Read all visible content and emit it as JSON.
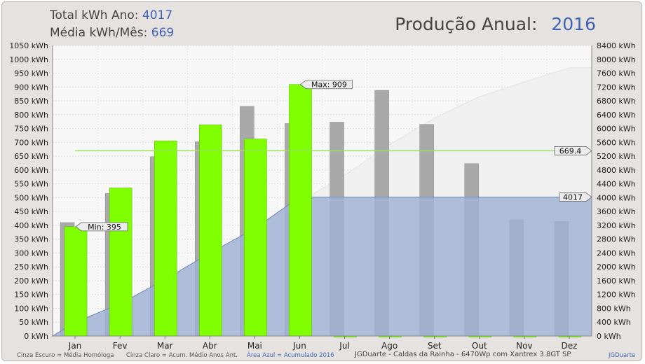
{
  "header": {
    "total_label": "Total kWh Ano:",
    "total_value": "4017",
    "avg_label": "Média kWh/Mês:",
    "avg_value": "669",
    "title_label": "Produção Anual:",
    "title_year": "2016"
  },
  "footer": {
    "legend1": "Cinza Escuro = Média Homóloga",
    "legend2": "Cinza Claro = Acum. Médio Anos Ant.",
    "legend3": "Área Azul = Acumulado 2016",
    "system": "JGDuarte  -  Caldas da Rainha  -  6470Wp com Xantrex 3.8GT SP",
    "brand": "JGDuarte"
  },
  "chart_data": {
    "type": "bar",
    "categories": [
      "Jan",
      "Fev",
      "Mar",
      "Abr",
      "Mai",
      "Jun",
      "Jul",
      "Ago",
      "Set",
      "Out",
      "Nov",
      "Dez"
    ],
    "y_left": {
      "ylim": [
        0,
        1050
      ],
      "step": 50,
      "unit": "kWh"
    },
    "y_right": {
      "ylim": [
        0,
        8400
      ],
      "step": 400,
      "unit": "kWh"
    },
    "grid": true,
    "series": [
      {
        "name": "Média Homóloga",
        "role": "dark-gray bars",
        "color": "#a9a9a9",
        "values": [
          410,
          515,
          648,
          702,
          830,
          768,
          773,
          888,
          765,
          623,
          421,
          414
        ]
      },
      {
        "name": "2016",
        "role": "green bars",
        "color": "#7fff00",
        "values": [
          395,
          535,
          705,
          763,
          712,
          909,
          0,
          0,
          0,
          0,
          0,
          0
        ]
      },
      {
        "name": "Acum. Médio Anos Ant.",
        "role": "light-gray area (right axis)",
        "color": "#f0f0f0",
        "values": [
          410,
          925,
          1573,
          2275,
          3105,
          3873,
          4646,
          5534,
          6299,
          6922,
          7343,
          7757
        ]
      },
      {
        "name": "Acumulado 2016",
        "role": "blue area (right axis)",
        "color": "#9fb1d4",
        "values": [
          395,
          930,
          1635,
          2398,
          3110,
          4017,
          4017,
          4017,
          4017,
          4017,
          4017,
          4017
        ]
      }
    ],
    "annotations": {
      "max_label": "Max: 909",
      "min_label": "Min: 395",
      "avg_line_value": 669.4,
      "avg_line_label": "669.4",
      "total_label": "4017"
    }
  }
}
